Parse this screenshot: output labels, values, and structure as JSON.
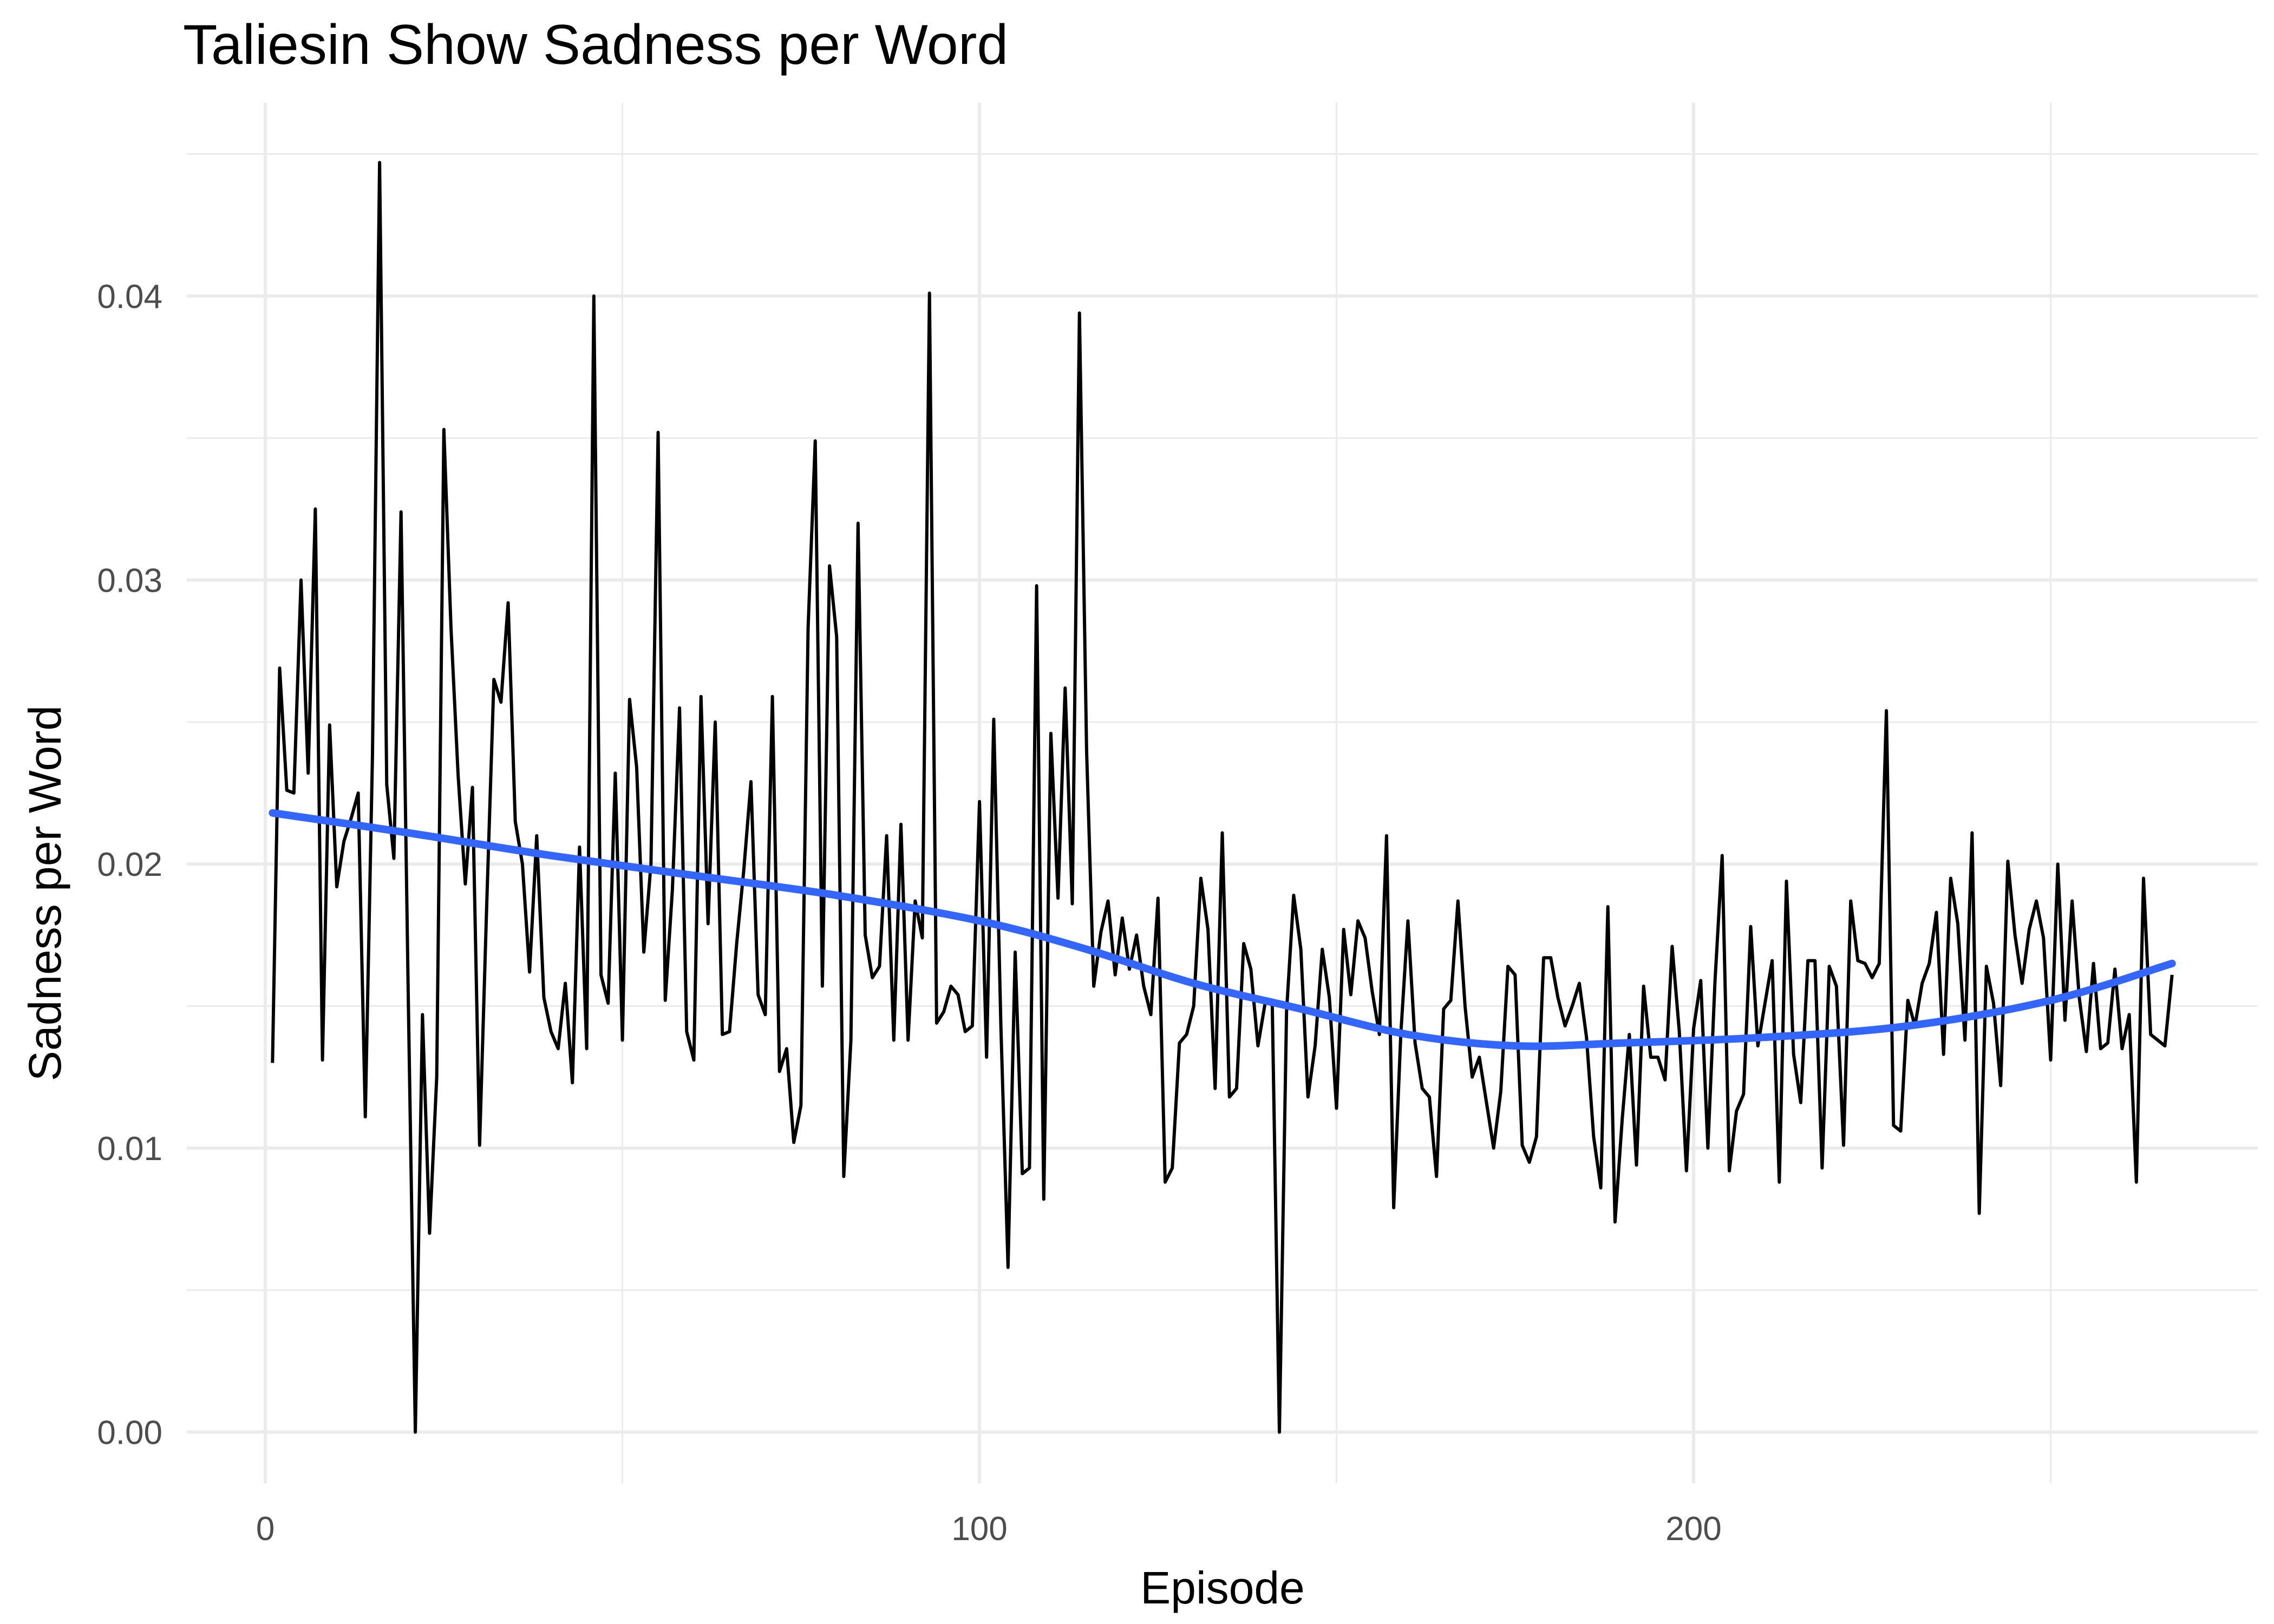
{
  "chart_data": {
    "type": "line",
    "title": "Taliesin Show Sadness per Word",
    "xlabel": "Episode",
    "ylabel": "Sadness per Word",
    "xlim": [
      -11,
      279
    ],
    "ylim": [
      -0.0018,
      0.0468
    ],
    "x_ticks": [
      0,
      100,
      200
    ],
    "x_tick_labels": [
      "0",
      "100",
      "200"
    ],
    "y_ticks": [
      0.0,
      0.01,
      0.02,
      0.03,
      0.04
    ],
    "y_tick_labels": [
      "0.00",
      "0.01",
      "0.02",
      "0.03",
      "0.04"
    ],
    "x_minor_ticks": [
      -50,
      50,
      150,
      250
    ],
    "y_minor_ticks": [
      0.005,
      0.015,
      0.025,
      0.035,
      0.045
    ],
    "grid": true,
    "legend": "none",
    "colors": {
      "series": "#000000",
      "smooth": "#3366ff"
    },
    "series": [
      {
        "values": [
          0.013,
          0.0269,
          0.0226,
          0.0225,
          0.03,
          0.0232,
          0.0325,
          0.0131,
          0.0249,
          0.0192,
          0.0208,
          0.0216,
          0.0225,
          0.0111,
          0.0238,
          0.0447,
          0.0228,
          0.0202,
          0.0324,
          0.0155,
          0.0,
          0.0147,
          0.007,
          0.0125,
          0.0353,
          0.0283,
          0.0231,
          0.0193,
          0.0227,
          0.0101,
          0.0186,
          0.0265,
          0.0257,
          0.0292,
          0.0215,
          0.02,
          0.0162,
          0.021,
          0.0153,
          0.0141,
          0.0135,
          0.0158,
          0.0123,
          0.0206,
          0.0135,
          0.04,
          0.0161,
          0.0151,
          0.0232,
          0.0138,
          0.0258,
          0.0234,
          0.0169,
          0.02,
          0.0352,
          0.0152,
          0.0191,
          0.0255,
          0.0141,
          0.0131,
          0.0259,
          0.0179,
          0.025,
          0.014,
          0.0141,
          0.0172,
          0.0198,
          0.0229,
          0.0154,
          0.0147,
          0.0259,
          0.0127,
          0.0135,
          0.0102,
          0.0115,
          0.0283,
          0.0349,
          0.0157,
          0.0305,
          0.028,
          0.009,
          0.0138,
          0.032,
          0.0175,
          0.016,
          0.0164,
          0.021,
          0.0138,
          0.0214,
          0.0138,
          0.0187,
          0.0174,
          0.0401,
          0.0144,
          0.0148,
          0.0157,
          0.0154,
          0.0141,
          0.0143,
          0.0222,
          0.0132,
          0.0251,
          0.0143,
          0.0058,
          0.0169,
          0.0091,
          0.0093,
          0.0298,
          0.0082,
          0.0246,
          0.0188,
          0.0262,
          0.0186,
          0.0394,
          0.024,
          0.0157,
          0.0176,
          0.0187,
          0.0161,
          0.0181,
          0.0163,
          0.0175,
          0.0157,
          0.0147,
          0.0188,
          0.0088,
          0.0093,
          0.0137,
          0.014,
          0.015,
          0.0195,
          0.0177,
          0.0121,
          0.0211,
          0.0118,
          0.0121,
          0.0172,
          0.0163,
          0.0136,
          0.0151,
          0.0151,
          0.0,
          0.0148,
          0.0189,
          0.017,
          0.0118,
          0.0136,
          0.017,
          0.0153,
          0.0114,
          0.0177,
          0.0154,
          0.018,
          0.0174,
          0.0155,
          0.014,
          0.021,
          0.0079,
          0.014,
          0.018,
          0.0137,
          0.0121,
          0.0118,
          0.009,
          0.0149,
          0.0152,
          0.0187,
          0.015,
          0.0125,
          0.0132,
          0.0116,
          0.01,
          0.012,
          0.0164,
          0.0161,
          0.0101,
          0.0095,
          0.0104,
          0.0167,
          0.0167,
          0.0153,
          0.0143,
          0.015,
          0.0158,
          0.0139,
          0.0104,
          0.0086,
          0.0185,
          0.0074,
          0.011,
          0.014,
          0.0094,
          0.0157,
          0.0132,
          0.0132,
          0.0124,
          0.0171,
          0.0141,
          0.0092,
          0.0142,
          0.0159,
          0.01,
          0.0159,
          0.0203,
          0.0092,
          0.0113,
          0.0119,
          0.0178,
          0.0136,
          0.0151,
          0.0166,
          0.0088,
          0.0194,
          0.0133,
          0.0116,
          0.0166,
          0.0166,
          0.0093,
          0.0164,
          0.0157,
          0.0101,
          0.0187,
          0.0166,
          0.0165,
          0.016,
          0.0165,
          0.0254,
          0.0108,
          0.0106,
          0.0152,
          0.0143,
          0.0158,
          0.0165,
          0.0183,
          0.0133,
          0.0195,
          0.0179,
          0.0138,
          0.0211,
          0.0077,
          0.0164,
          0.0151,
          0.0122,
          0.0201,
          0.0175,
          0.0158,
          0.0177,
          0.0187,
          0.0174,
          0.0131,
          0.02,
          0.0145,
          0.0187,
          0.0153,
          0.0134,
          0.0165,
          0.0135,
          0.0137,
          0.0163,
          0.0135,
          0.0147,
          0.0088,
          0.0195,
          0.014,
          0.0138,
          0.0136,
          0.0161
        ]
      },
      {
        "x": [
          1,
          20,
          40,
          60,
          80,
          100,
          115,
          130,
          145,
          160,
          175,
          190,
          210,
          230,
          250,
          267
        ],
        "values": [
          0.0218,
          0.0211,
          0.0203,
          0.0196,
          0.0189,
          0.018,
          0.017,
          0.0158,
          0.0149,
          0.014,
          0.0136,
          0.0137,
          0.0139,
          0.0143,
          0.0152,
          0.0165
        ]
      }
    ]
  }
}
